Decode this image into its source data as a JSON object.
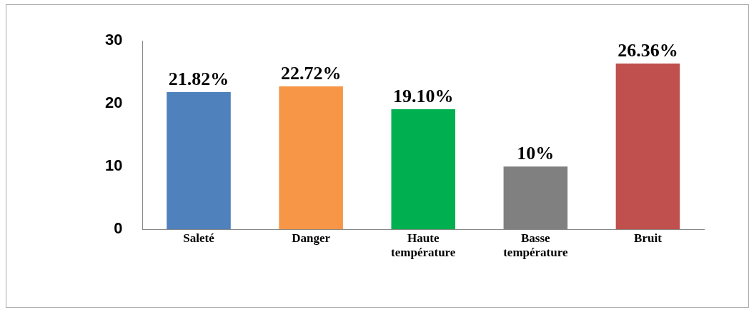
{
  "chart_data": {
    "type": "bar",
    "categories": [
      "Saleté",
      "Danger",
      "Haute température",
      "Basse température",
      "Bruit"
    ],
    "values": [
      21.82,
      22.72,
      19.1,
      10,
      26.36
    ],
    "colors": [
      "#4f81bd",
      "#f79646",
      "#00b050",
      "#808080",
      "#c0504d"
    ],
    "value_labels": [
      "21.82%",
      "22.72%",
      "19.10%",
      "10%",
      "26.36%"
    ],
    "ylim": [
      0,
      30
    ],
    "yticks": [
      0,
      10,
      20,
      30
    ],
    "grid": false,
    "legend": false
  }
}
